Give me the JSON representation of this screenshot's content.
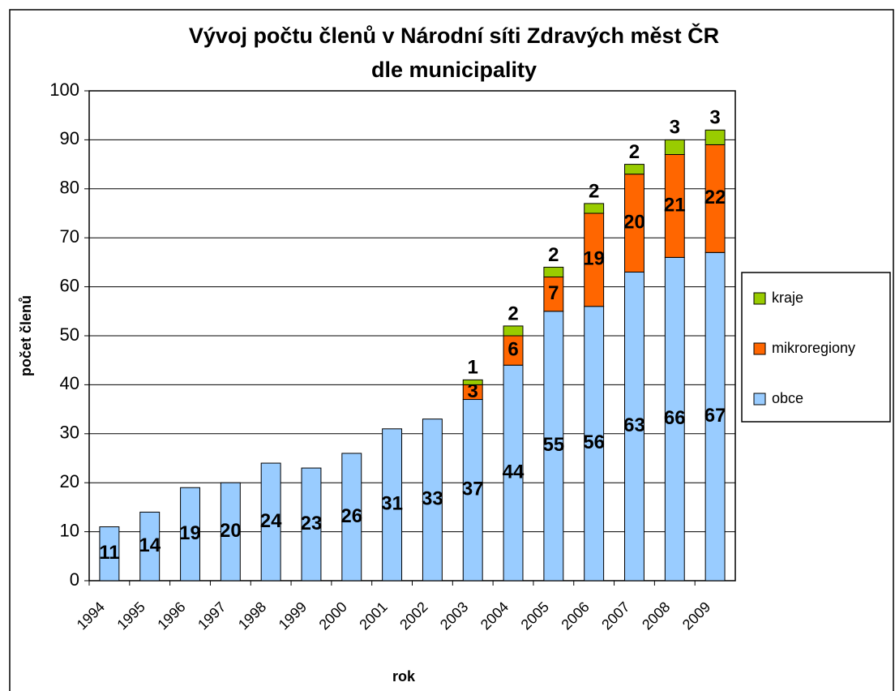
{
  "chart_data": {
    "type": "stacked_bar",
    "title": "Vývoj počtu členů v Národní síti Zdravých měst ČR",
    "subtitle": "dle municipality",
    "x_label": "rok",
    "y_label": "počet členů",
    "categories": [
      "1994",
      "1995",
      "1996",
      "1997",
      "1998",
      "1999",
      "2000",
      "2001",
      "2002",
      "2003",
      "2004",
      "2005",
      "2006",
      "2007",
      "2008",
      "2009"
    ],
    "series": [
      {
        "name": "obce",
        "color": "#99ccff",
        "values": [
          11,
          14,
          19,
          20,
          24,
          23,
          26,
          31,
          33,
          37,
          44,
          55,
          56,
          63,
          66,
          67
        ]
      },
      {
        "name": "mikroregiony",
        "color": "#ff6600",
        "values": [
          null,
          null,
          null,
          null,
          null,
          null,
          null,
          null,
          null,
          3,
          6,
          7,
          19,
          20,
          21,
          22
        ]
      },
      {
        "name": "kraje",
        "color": "#99cc00",
        "values": [
          null,
          null,
          null,
          null,
          null,
          null,
          null,
          null,
          null,
          1,
          2,
          2,
          2,
          2,
          3,
          3
        ]
      }
    ],
    "ylim": [
      0,
      100
    ],
    "yticks": [
      0,
      10,
      20,
      30,
      40,
      50,
      60,
      70,
      80,
      90,
      100
    ],
    "grid": true,
    "legend": "right"
  }
}
